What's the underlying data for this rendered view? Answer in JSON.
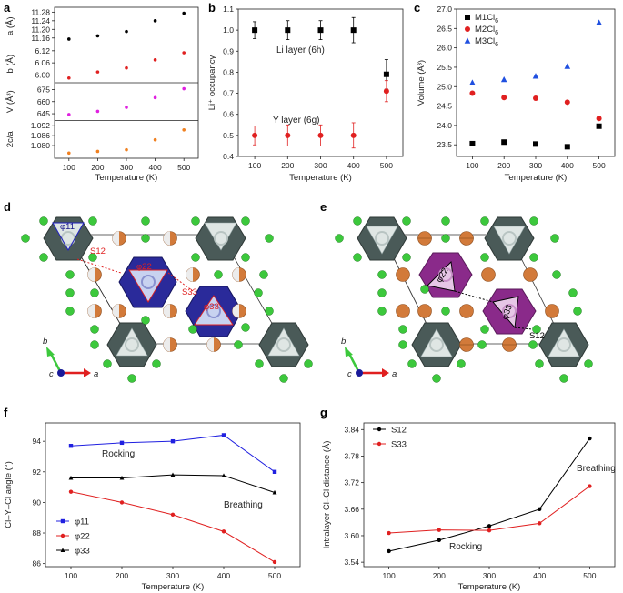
{
  "panel_labels": {
    "a": "a",
    "b": "b",
    "c": "c",
    "d": "d",
    "e": "e",
    "f": "f",
    "g": "g"
  },
  "chart_data": [
    {
      "id": "a",
      "type": "scatter",
      "xlabel": "Temperature (K)",
      "x": [
        100,
        200,
        300,
        400,
        500
      ],
      "xticks": [
        "100",
        "200",
        "300",
        "400",
        "500"
      ],
      "subplots": [
        {
          "ylabel": "a (Å)",
          "color": "#000000",
          "values": [
            11.155,
            11.17,
            11.19,
            11.24,
            11.275
          ],
          "ylim": [
            11.14,
            11.29
          ],
          "yticks": [
            "11.16",
            "11.20",
            "11.24",
            "11.28"
          ],
          "ytick_values": [
            11.16,
            11.2,
            11.24,
            11.28
          ]
        },
        {
          "ylabel": "b (Å)",
          "color": "#e02020",
          "values": [
            5.985,
            6.015,
            6.035,
            6.075,
            6.11
          ],
          "ylim": [
            5.975,
            6.135
          ],
          "yticks": [
            "6.00",
            "6.06",
            "6.12"
          ],
          "ytick_values": [
            6.0,
            6.06,
            6.12
          ]
        },
        {
          "ylabel": "V (Å³)",
          "color": "#e020e0",
          "values": [
            644,
            648,
            653,
            665,
            676
          ],
          "ylim": [
            640,
            680
          ],
          "yticks": [
            "645",
            "660",
            "675"
          ],
          "ytick_values": [
            645,
            660,
            675
          ]
        },
        {
          "ylabel": "2c/a",
          "color": "#f08020",
          "values": [
            1.0755,
            1.0765,
            1.0775,
            1.0835,
            1.0895
          ],
          "ylim": [
            1.074,
            1.0935
          ],
          "yticks": [
            "1.080",
            "1.086",
            "1.092"
          ],
          "ytick_values": [
            1.08,
            1.086,
            1.092
          ]
        }
      ]
    },
    {
      "id": "b",
      "type": "scatter",
      "xlabel": "Temperature (K)",
      "ylabel": "Li⁺ occupancy",
      "x": [
        100,
        200,
        300,
        400,
        500
      ],
      "xticks": [
        "100",
        "200",
        "300",
        "400",
        "500"
      ],
      "ylim": [
        0.4,
        1.1
      ],
      "yticks": [
        "0.4",
        "0.5",
        "0.6",
        "0.7",
        "0.8",
        "0.9",
        "1.0",
        "1.1"
      ],
      "ytick_values": [
        0.4,
        0.5,
        0.6,
        0.7,
        0.8,
        0.9,
        1.0,
        1.1
      ],
      "annotations": [
        "Li layer (6h)",
        "Y layer (6g)"
      ],
      "series": [
        {
          "name": "Li layer (6h)",
          "color": "#000000",
          "marker": "square",
          "values": [
            1.0,
            1.0,
            1.0,
            1.0,
            0.79
          ],
          "err": [
            0.04,
            0.045,
            0.045,
            0.06,
            0.07
          ],
          "highlight_last": "#e02020"
        },
        {
          "name": "Y layer (6g)",
          "color": "#e02020",
          "marker": "circle",
          "values": [
            0.5,
            0.5,
            0.5,
            0.5,
            0.71
          ],
          "err": [
            0.045,
            0.05,
            0.05,
            0.06,
            0.05
          ]
        }
      ]
    },
    {
      "id": "c",
      "type": "scatter",
      "xlabel": "Temperature (K)",
      "ylabel": "Volume (Å³)",
      "x": [
        100,
        200,
        300,
        400,
        500
      ],
      "xticks": [
        "100",
        "200",
        "300",
        "400",
        "500"
      ],
      "ylim": [
        23.2,
        27.0
      ],
      "yticks": [
        "23.5",
        "24.0",
        "24.5",
        "25.0",
        "25.5",
        "26.0",
        "26.5",
        "27.0"
      ],
      "ytick_values": [
        23.5,
        24.0,
        24.5,
        25.0,
        25.5,
        26.0,
        26.5,
        27.0
      ],
      "series": [
        {
          "name": "M1Cl",
          "sub": "6",
          "color": "#000000",
          "marker": "square",
          "values": [
            23.53,
            23.57,
            23.52,
            23.45,
            23.98
          ]
        },
        {
          "name": "M2Cl",
          "sub": "6",
          "color": "#e02020",
          "marker": "circle",
          "values": [
            24.83,
            24.72,
            24.7,
            24.6,
            24.18
          ]
        },
        {
          "name": "M3Cl",
          "sub": "6",
          "color": "#2050e0",
          "marker": "triangle",
          "values": [
            25.1,
            25.18,
            25.27,
            25.52,
            26.65
          ]
        }
      ]
    },
    {
      "id": "f",
      "type": "line",
      "xlabel": "Temperature (K)",
      "ylabel": "Cl–Y–Cl angle (°)",
      "x": [
        100,
        200,
        300,
        400,
        500
      ],
      "xticks": [
        "100",
        "200",
        "300",
        "400",
        "500"
      ],
      "ylim": [
        85.8,
        95.2
      ],
      "yticks": [
        "86",
        "88",
        "90",
        "92",
        "94"
      ],
      "ytick_values": [
        86,
        88,
        90,
        92,
        94
      ],
      "annotations": [
        "Rocking",
        "Breathing"
      ],
      "series": [
        {
          "name": "φ11",
          "color": "#2020e0",
          "marker": "square",
          "values": [
            93.7,
            93.9,
            94.0,
            94.4,
            92.0
          ]
        },
        {
          "name": "φ22",
          "color": "#e02020",
          "marker": "circle",
          "values": [
            90.7,
            90.0,
            89.2,
            88.1,
            86.1
          ]
        },
        {
          "name": "φ33",
          "color": "#000000",
          "marker": "triangle",
          "values": [
            91.6,
            91.6,
            91.8,
            91.75,
            90.65
          ]
        }
      ]
    },
    {
      "id": "g",
      "type": "line",
      "xlabel": "Temperature (K)",
      "ylabel": "Intralayer Cl–Cl distance (Å)",
      "x": [
        100,
        200,
        300,
        400,
        500
      ],
      "xticks": [
        "100",
        "200",
        "300",
        "400",
        "500"
      ],
      "ylim": [
        3.53,
        3.855
      ],
      "yticks": [
        "3.54",
        "3.60",
        "3.66",
        "3.72",
        "3.78",
        "3.84"
      ],
      "ytick_values": [
        3.54,
        3.6,
        3.66,
        3.72,
        3.78,
        3.84
      ],
      "annotations": [
        "Breathing",
        "Rocking"
      ],
      "series": [
        {
          "name": "S12",
          "color": "#000000",
          "marker": "circle",
          "values": [
            3.565,
            3.59,
            3.622,
            3.66,
            3.82
          ]
        },
        {
          "name": "S33",
          "color": "#e02020",
          "marker": "circle",
          "values": [
            3.606,
            3.613,
            3.612,
            3.628,
            3.712
          ]
        }
      ]
    }
  ],
  "structures": {
    "d": {
      "labels": {
        "phi11": "φ11",
        "phi22": "φ22",
        "phi33": "φ33",
        "s12": "S12",
        "s33": "S33"
      },
      "axes": {
        "b": "b",
        "c": "c",
        "a": "a"
      }
    },
    "e": {
      "labels": {
        "phi22": "φ22",
        "phi33": "φ33",
        "s12": "S12"
      },
      "axes": {
        "b": "b",
        "c": "c",
        "a": "a"
      }
    }
  },
  "colors": {
    "octahedron": "#4a5a58",
    "highlight_blue": "#2a2a9a",
    "highlight_purple": "#8a2a8a",
    "chlorine": "#3cc83c",
    "lithium": "#d27a3a"
  }
}
